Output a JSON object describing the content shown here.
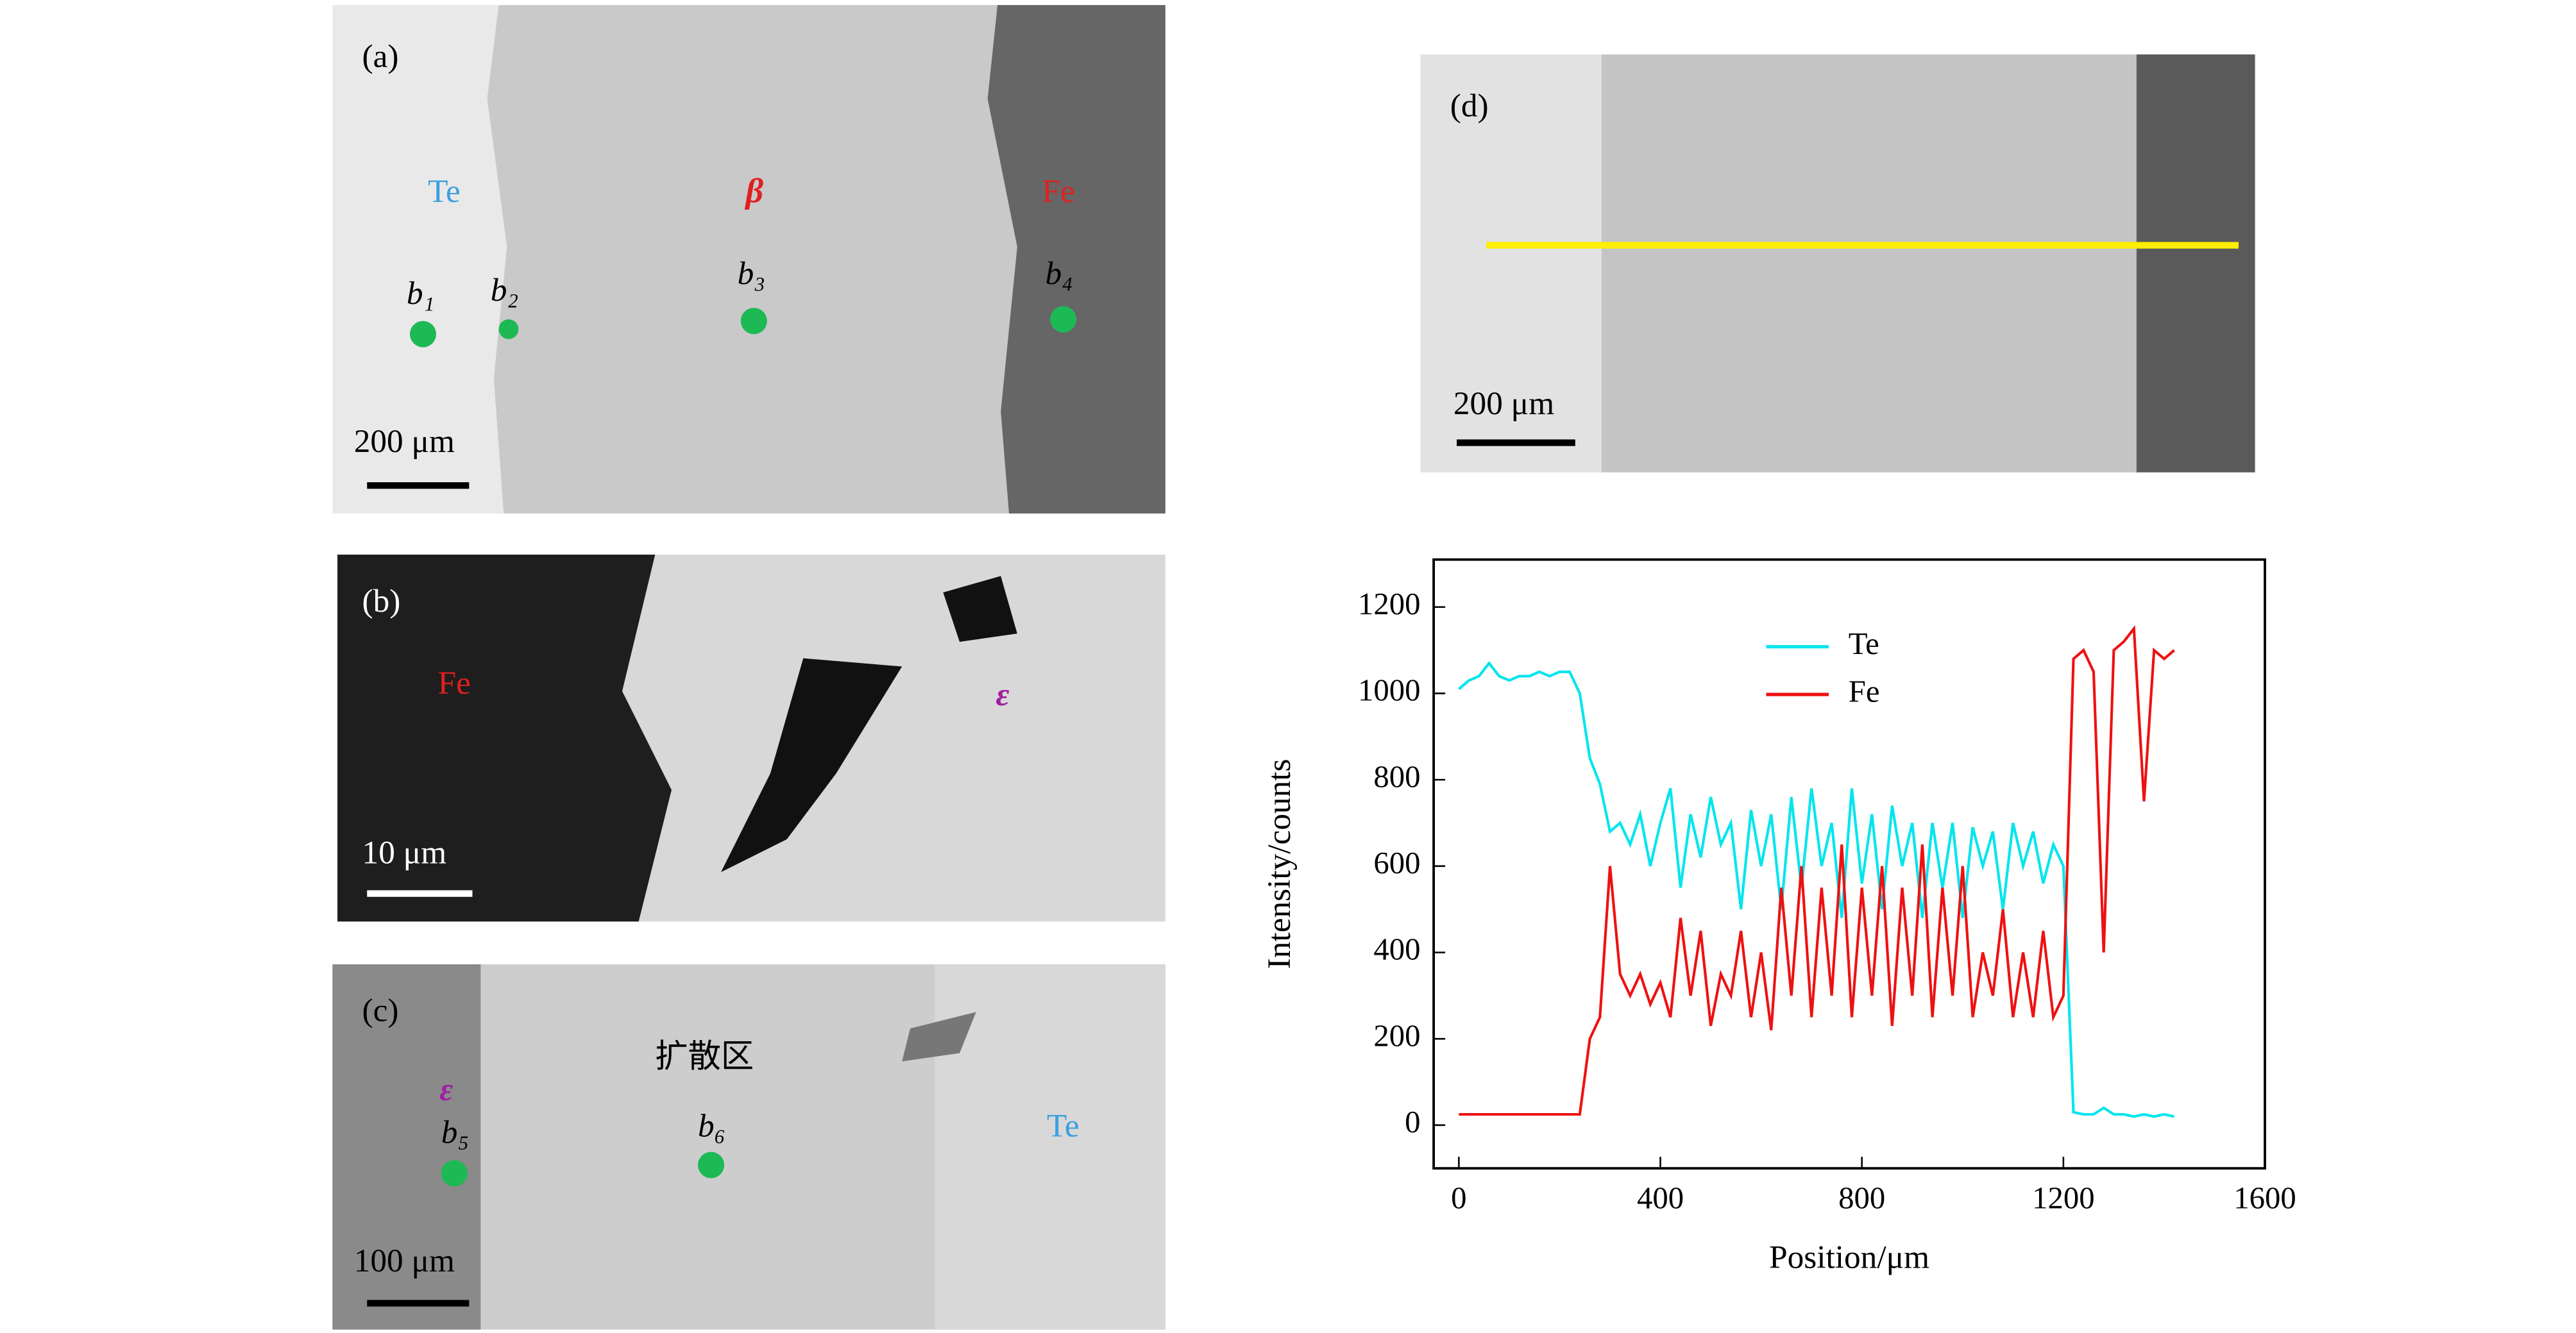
{
  "panels": {
    "a": {
      "label": "(a)",
      "texts": [
        "Te",
        "β",
        "Fe",
        "b₁",
        "b₂",
        "b₃",
        "b₄"
      ],
      "scale": "200 μm"
    },
    "b": {
      "label": "(b)",
      "texts": [
        "Fe",
        "ε"
      ],
      "scale": "10 μm"
    },
    "c": {
      "label": "(c)",
      "texts": [
        "扩散区",
        "ε",
        "b₅",
        "b₆",
        "Te"
      ],
      "scale": "100 μm"
    },
    "d": {
      "label": "(d)",
      "scale": "200 μm"
    }
  },
  "chart_data": {
    "type": "line",
    "xlabel": "Position/μm",
    "ylabel": "Intensity/counts",
    "x": [
      0,
      20,
      40,
      60,
      80,
      100,
      120,
      140,
      160,
      180,
      200,
      220,
      240,
      260,
      280,
      300,
      320,
      340,
      360,
      380,
      400,
      420,
      440,
      460,
      480,
      500,
      520,
      540,
      560,
      580,
      600,
      620,
      640,
      660,
      680,
      700,
      720,
      740,
      760,
      780,
      800,
      820,
      840,
      860,
      880,
      900,
      920,
      940,
      960,
      980,
      1000,
      1020,
      1040,
      1060,
      1080,
      1100,
      1120,
      1140,
      1160,
      1180,
      1200,
      1220,
      1240,
      1260,
      1280,
      1300,
      1320,
      1340,
      1360,
      1380,
      1400,
      1420
    ],
    "series": [
      {
        "name": "Te",
        "color": "#00e5ee",
        "values": [
          1010,
          1030,
          1040,
          1070,
          1040,
          1030,
          1040,
          1040,
          1050,
          1040,
          1050,
          1050,
          1000,
          850,
          790,
          680,
          700,
          650,
          720,
          600,
          700,
          780,
          550,
          720,
          620,
          760,
          650,
          700,
          500,
          730,
          600,
          720,
          500,
          760,
          550,
          780,
          600,
          700,
          480,
          780,
          560,
          720,
          500,
          740,
          600,
          700,
          480,
          700,
          550,
          700,
          480,
          690,
          600,
          680,
          500,
          700,
          600,
          680,
          560,
          650,
          600,
          30,
          25,
          25,
          40,
          25,
          25,
          20,
          25,
          20,
          25,
          20
        ]
      },
      {
        "name": "Fe",
        "color": "#ee1111",
        "values": [
          25,
          25,
          25,
          25,
          25,
          25,
          25,
          25,
          25,
          25,
          25,
          25,
          25,
          200,
          250,
          600,
          350,
          300,
          350,
          280,
          330,
          250,
          480,
          300,
          450,
          230,
          350,
          300,
          450,
          250,
          400,
          220,
          550,
          300,
          600,
          250,
          550,
          300,
          650,
          250,
          550,
          300,
          600,
          230,
          550,
          300,
          650,
          250,
          550,
          300,
          600,
          250,
          400,
          300,
          500,
          250,
          400,
          250,
          450,
          250,
          300,
          1080,
          1100,
          1050,
          400,
          1100,
          1120,
          1150,
          750,
          1100,
          1080,
          1100
        ]
      }
    ],
    "xlim": [
      -50,
      1600
    ],
    "ylim": [
      -100,
      1310
    ],
    "xticks": [
      0,
      400,
      800,
      1200,
      1600
    ],
    "yticks": [
      0,
      200,
      400,
      600,
      800,
      1000,
      1200
    ],
    "legend": "upper-center"
  }
}
